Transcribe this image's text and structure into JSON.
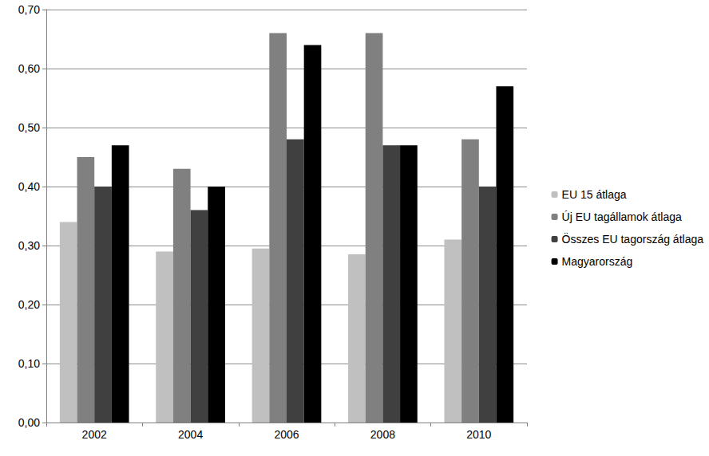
{
  "chart_data": {
    "type": "bar",
    "categories": [
      "2002",
      "2004",
      "2006",
      "2008",
      "2010"
    ],
    "series": [
      {
        "name": "EU 15 átlaga",
        "color": "#c0c0c0",
        "values": [
          0.34,
          0.29,
          0.295,
          0.285,
          0.31
        ]
      },
      {
        "name": "Új EU tagállamok átlaga",
        "color": "#808080",
        "values": [
          0.45,
          0.43,
          0.66,
          0.66,
          0.48
        ]
      },
      {
        "name": "Összes EU tagország átlaga",
        "color": "#404040",
        "values": [
          0.4,
          0.36,
          0.48,
          0.47,
          0.4
        ]
      },
      {
        "name": "Magyarország",
        "color": "#000000",
        "values": [
          0.47,
          0.4,
          0.64,
          0.47,
          0.57
        ]
      }
    ],
    "ylim": [
      0,
      0.7
    ],
    "yticks": [
      {
        "value": 0,
        "label": "0,00"
      },
      {
        "value": 0.1,
        "label": "0,10"
      },
      {
        "value": 0.2,
        "label": "0,20"
      },
      {
        "value": 0.3,
        "label": "0,30"
      },
      {
        "value": 0.4,
        "label": "0,40"
      },
      {
        "value": 0.5,
        "label": "0,50"
      },
      {
        "value": 0.6,
        "label": "0,60"
      },
      {
        "value": 0.7,
        "label": "0,70"
      }
    ],
    "grid": true,
    "legend": "right"
  }
}
